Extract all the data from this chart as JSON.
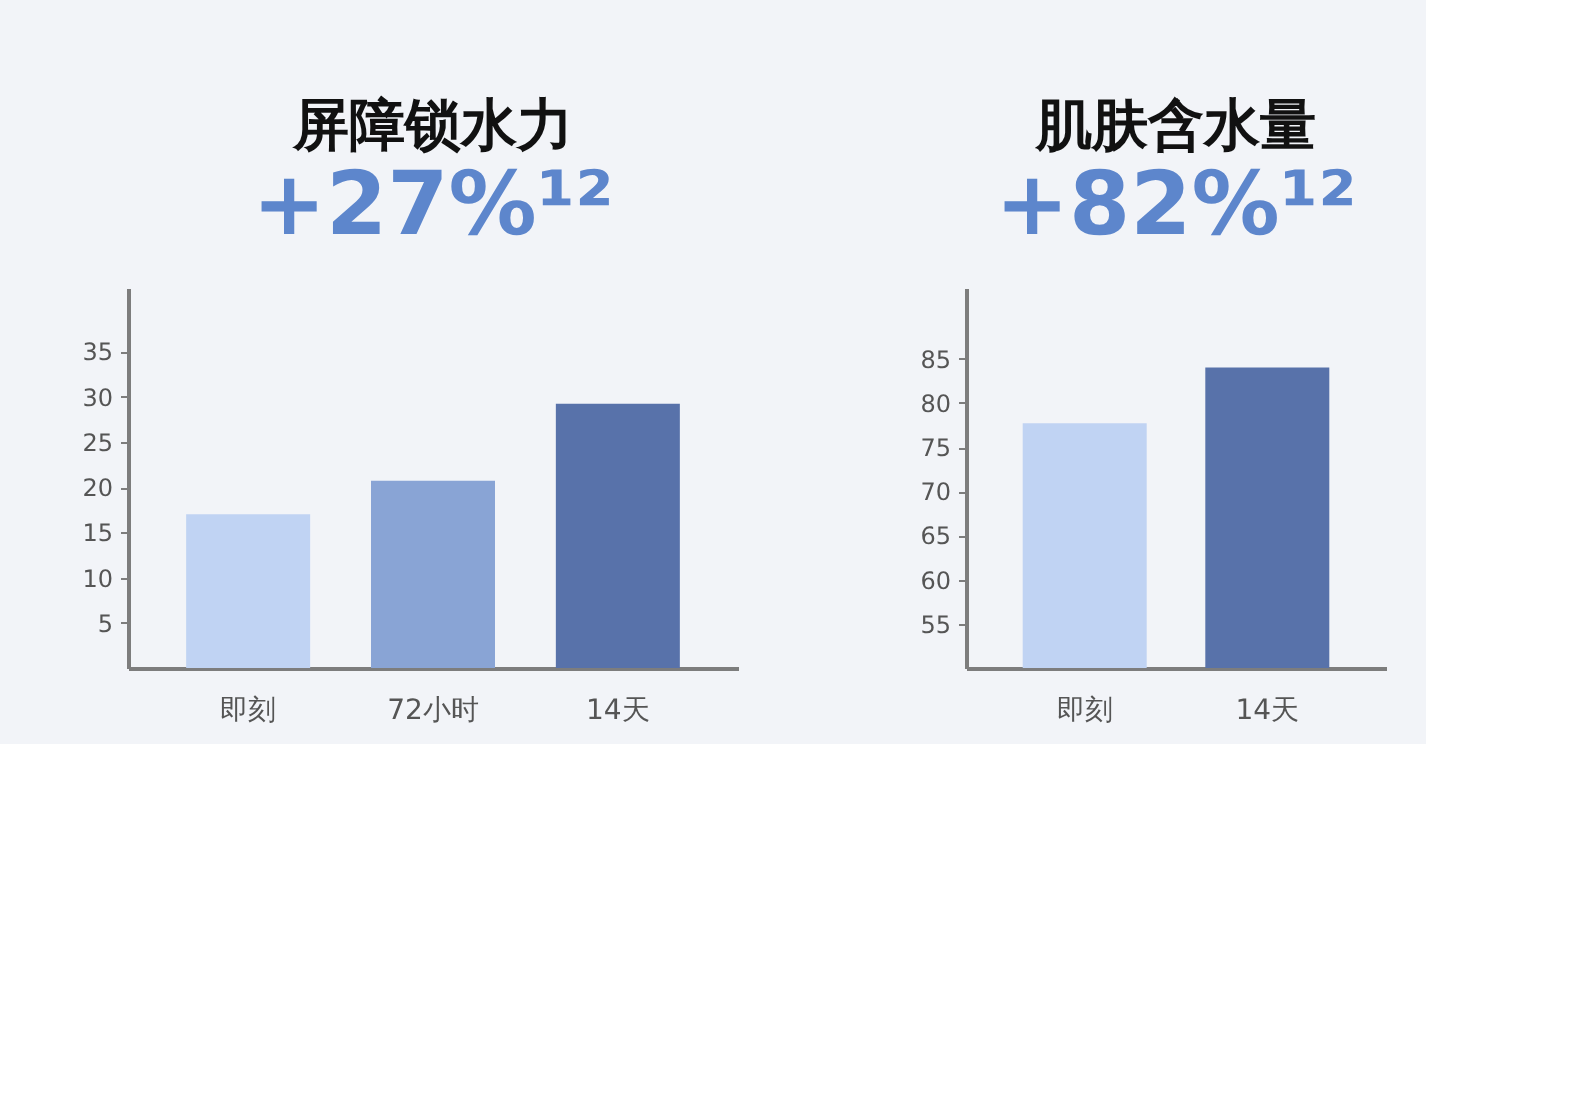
{
  "chart_data": [
    {
      "type": "bar",
      "title": "屏障锁水力",
      "subtitle": "+27%¹²",
      "categories": [
        "即刻",
        "72小时",
        "14天"
      ],
      "values": [
        17,
        20.7,
        29.2
      ],
      "colors": [
        "#c0d3f3",
        "#89a4d5",
        "#5872aa"
      ],
      "ylim": [
        0,
        42
      ],
      "yticks": [
        5,
        10,
        15,
        20,
        25,
        30,
        35
      ],
      "grid": false,
      "legend": false
    },
    {
      "type": "bar",
      "title": "肌肤含水量",
      "subtitle": "+82%¹²",
      "categories": [
        "即刻",
        "14天"
      ],
      "values": [
        77.7,
        84
      ],
      "colors": [
        "#c0d3f3",
        "#5872aa"
      ],
      "ylim": [
        50,
        93
      ],
      "yticks": [
        55,
        60,
        65,
        70,
        75,
        80,
        85
      ],
      "grid": false,
      "legend": false
    }
  ]
}
